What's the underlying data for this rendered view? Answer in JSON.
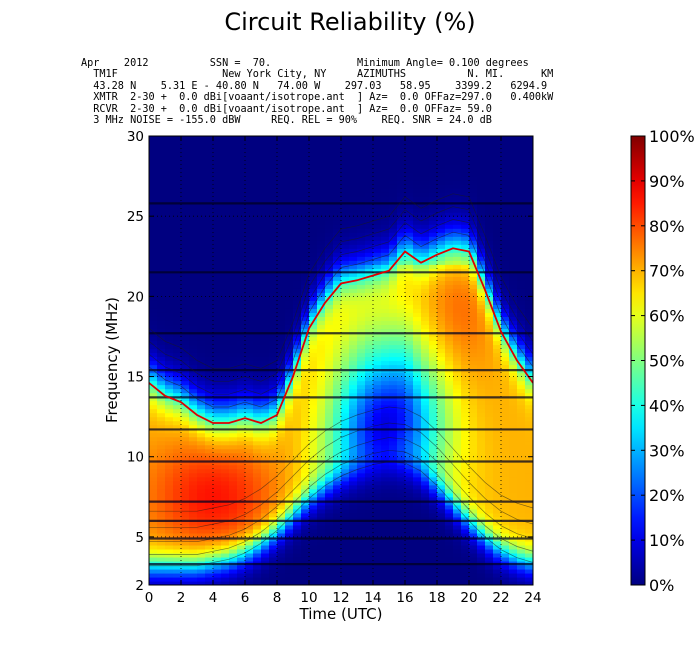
{
  "chart_data": {
    "type": "heatmap",
    "title": "Circuit Reliability (%)",
    "header_lines": [
      "Apr    2012          SSN =  70.              Minimum Angle= 0.100 degrees",
      "  TM1F                 New York City, NY     AZIMUTHS          N. MI.      KM",
      "  43.28 N    5.31 E - 40.80 N   74.00 W    297.03   58.95    3399.2   6294.9",
      "  XMTR  2-30 +  0.0 dBi[voaant/isotrope.ant  ] Az=  0.0 OFFaz=297.0   0.400kW",
      "  RCVR  2-30 +  0.0 dBi[voaant/isotrope.ant  ] Az=  0.0 OFFaz= 59.0",
      "  3 MHz NOISE = -155.0 dBW     REQ. REL = 90%    REQ. SNR = 24.0 dB"
    ],
    "xlabel": "Time (UTC)",
    "ylabel": "Frequency (MHz)",
    "xlim": [
      0,
      24
    ],
    "ylim": [
      2,
      30
    ],
    "x_ticks": [
      0,
      2,
      4,
      6,
      8,
      10,
      12,
      14,
      16,
      18,
      20,
      22,
      24
    ],
    "y_ticks": [
      2,
      5,
      10,
      15,
      20,
      25,
      30
    ],
    "grid": true,
    "colorbar": {
      "min": 0,
      "max": 100,
      "tick_values": [
        0,
        10,
        20,
        30,
        40,
        50,
        60,
        70,
        80,
        90,
        100
      ],
      "tick_labels": [
        "0%",
        "10%",
        "20%",
        "30%",
        "40%",
        "50%",
        "60%",
        "70%",
        "80%",
        "90%",
        "100%"
      ],
      "colormap": "jet"
    },
    "broadcast_bands_mhz": [
      3.3,
      4.9,
      6.0,
      7.2,
      9.7,
      11.7,
      13.7,
      15.4,
      17.7,
      21.5,
      25.8
    ],
    "luf_hours": [
      0,
      1,
      2,
      3,
      4,
      5,
      6,
      7,
      8,
      9,
      10,
      11,
      12,
      13,
      14,
      15,
      16,
      17,
      18,
      19,
      20,
      21,
      22,
      23,
      24
    ],
    "luf_mhz": [
      2.6,
      2.6,
      2.6,
      2.6,
      2.8,
      3.0,
      3.4,
      4.0,
      4.8,
      5.8,
      6.8,
      7.6,
      8.2,
      8.6,
      8.9,
      9.1,
      9.0,
      8.5,
      7.6,
      6.5,
      5.4,
      4.4,
      3.6,
      3.1,
      2.8
    ],
    "muf_hours": [
      0,
      1,
      2,
      3,
      4,
      5,
      6,
      7,
      8,
      9,
      10,
      11,
      12,
      13,
      14,
      15,
      16,
      17,
      18,
      19,
      20,
      21,
      22,
      23,
      24
    ],
    "muf_mhz": [
      14.6,
      13.8,
      13.4,
      12.6,
      12.1,
      12.1,
      12.4,
      12.1,
      12.6,
      15.0,
      18.0,
      19.6,
      20.8,
      21.0,
      21.3,
      21.6,
      22.8,
      22.1,
      22.6,
      23.0,
      22.8,
      20.4,
      17.8,
      16.0,
      14.6
    ],
    "high_zone_peaks_percent": [
      {
        "hour": 4,
        "mhz": 7.5,
        "value": 82
      },
      {
        "hour": 19,
        "mhz": 19.0,
        "value": 80
      },
      {
        "hour": 14,
        "mhz": 18.5,
        "value": 65
      }
    ],
    "low_zone_min": {
      "hour": 14.5,
      "mhz": 10.5,
      "value": 3
    }
  }
}
